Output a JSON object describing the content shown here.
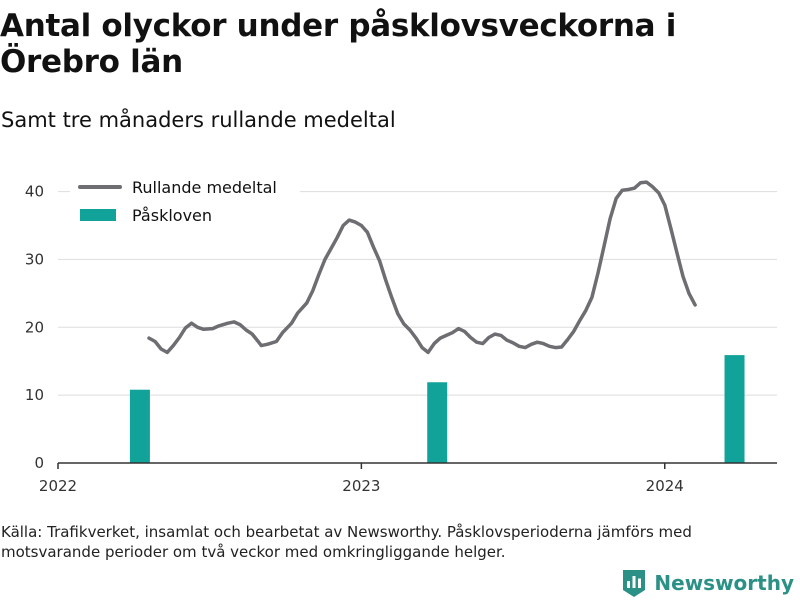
{
  "title": "Antal olyckor under påsklovsveckorna i Örebro län",
  "subtitle": "Samt tre månaders rullande medeltal",
  "source": "Källa: Trafikverket, insamlat och bearbetat av Newsworthy. Påsklovsperioderna jämförs med motsvarande perioder om två veckor med omkringliggande helger.",
  "brand": {
    "name": "Newsworthy",
    "icon": "newsworthy-logo-icon",
    "color": "#2b9085"
  },
  "chart_data": {
    "type": "bar+line",
    "title": "Antal olyckor under påsklovsveckorna i Örebro län",
    "subtitle": "Samt tre månaders rullande medeltal",
    "xlabel": "",
    "ylabel": "",
    "xlim": [
      2022.0,
      2024.37
    ],
    "ylim": [
      0,
      42
    ],
    "yticks": [
      0,
      10,
      20,
      30,
      40
    ],
    "xticks": [
      {
        "value": 2022,
        "label": "2022"
      },
      {
        "value": 2023,
        "label": "2023"
      },
      {
        "value": 2024,
        "label": "2024"
      }
    ],
    "grid": true,
    "legend_position": "top-left",
    "series": [
      {
        "name": "Rullande medeltal",
        "type": "line",
        "color": "#6d6d72",
        "points": [
          [
            2022.3,
            18.4
          ],
          [
            2022.32,
            17.9
          ],
          [
            2022.34,
            16.8
          ],
          [
            2022.36,
            16.3
          ],
          [
            2022.38,
            17.3
          ],
          [
            2022.4,
            18.5
          ],
          [
            2022.42,
            19.9
          ],
          [
            2022.44,
            20.6
          ],
          [
            2022.46,
            20.0
          ],
          [
            2022.48,
            19.7
          ],
          [
            2022.51,
            19.8
          ],
          [
            2022.53,
            20.2
          ],
          [
            2022.56,
            20.6
          ],
          [
            2022.58,
            20.8
          ],
          [
            2022.6,
            20.4
          ],
          [
            2022.62,
            19.6
          ],
          [
            2022.64,
            19.0
          ],
          [
            2022.66,
            17.9
          ],
          [
            2022.67,
            17.3
          ],
          [
            2022.69,
            17.5
          ],
          [
            2022.72,
            17.9
          ],
          [
            2022.74,
            19.2
          ],
          [
            2022.77,
            20.6
          ],
          [
            2022.79,
            22.1
          ],
          [
            2022.82,
            23.6
          ],
          [
            2022.84,
            25.4
          ],
          [
            2022.86,
            27.8
          ],
          [
            2022.88,
            30.0
          ],
          [
            2022.9,
            31.6
          ],
          [
            2022.92,
            33.2
          ],
          [
            2022.94,
            35.0
          ],
          [
            2022.96,
            35.8
          ],
          [
            2022.98,
            35.5
          ],
          [
            2023.0,
            35.0
          ],
          [
            2023.02,
            34.0
          ],
          [
            2023.04,
            31.8
          ],
          [
            2023.06,
            29.8
          ],
          [
            2023.08,
            27.0
          ],
          [
            2023.1,
            24.4
          ],
          [
            2023.12,
            22.0
          ],
          [
            2023.14,
            20.5
          ],
          [
            2023.16,
            19.6
          ],
          [
            2023.18,
            18.4
          ],
          [
            2023.2,
            17.0
          ],
          [
            2023.22,
            16.3
          ],
          [
            2023.24,
            17.6
          ],
          [
            2023.26,
            18.4
          ],
          [
            2023.28,
            18.8
          ],
          [
            2023.3,
            19.2
          ],
          [
            2023.32,
            19.8
          ],
          [
            2023.34,
            19.4
          ],
          [
            2023.36,
            18.5
          ],
          [
            2023.38,
            17.8
          ],
          [
            2023.4,
            17.6
          ],
          [
            2023.42,
            18.5
          ],
          [
            2023.44,
            19.0
          ],
          [
            2023.46,
            18.8
          ],
          [
            2023.48,
            18.1
          ],
          [
            2023.5,
            17.7
          ],
          [
            2023.52,
            17.2
          ],
          [
            2023.54,
            17.0
          ],
          [
            2023.56,
            17.5
          ],
          [
            2023.58,
            17.8
          ],
          [
            2023.6,
            17.6
          ],
          [
            2023.62,
            17.2
          ],
          [
            2023.64,
            17.0
          ],
          [
            2023.66,
            17.1
          ],
          [
            2023.68,
            18.2
          ],
          [
            2023.7,
            19.4
          ],
          [
            2023.72,
            21.0
          ],
          [
            2023.74,
            22.5
          ],
          [
            2023.76,
            24.4
          ],
          [
            2023.78,
            28.0
          ],
          [
            2023.8,
            32.0
          ],
          [
            2023.82,
            36.0
          ],
          [
            2023.84,
            39.0
          ],
          [
            2023.86,
            40.2
          ],
          [
            2023.88,
            40.3
          ],
          [
            2023.9,
            40.5
          ],
          [
            2023.92,
            41.3
          ],
          [
            2023.94,
            41.4
          ],
          [
            2023.96,
            40.7
          ],
          [
            2023.98,
            39.8
          ],
          [
            2024.0,
            38.0
          ],
          [
            2024.02,
            34.6
          ],
          [
            2024.04,
            31.0
          ],
          [
            2024.06,
            27.5
          ],
          [
            2024.08,
            25.0
          ],
          [
            2024.1,
            23.3
          ]
        ]
      },
      {
        "name": "Påskloven",
        "type": "bar",
        "color": "#11a39a",
        "points": [
          [
            2022.27,
            10.8
          ],
          [
            2023.25,
            11.9
          ],
          [
            2024.23,
            15.9
          ]
        ]
      }
    ]
  }
}
